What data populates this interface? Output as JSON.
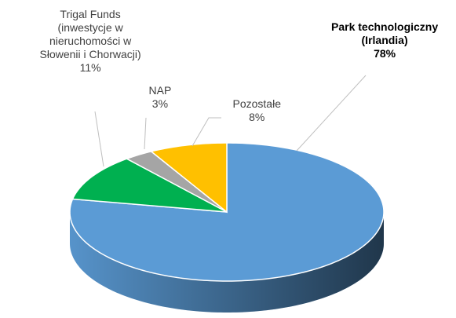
{
  "chart_data": {
    "type": "pie",
    "categories": [
      "Park technologiczny\n(Irlandia)",
      "Trigal Funds\n(inwestycje w\nnieruchomości w\nSłowenii i Chorwacji)",
      "NAP",
      "Pozostałe"
    ],
    "values": [
      78,
      11,
      3,
      8
    ],
    "value_labels": [
      "78%",
      "11%",
      "3%",
      "8%"
    ],
    "colors": [
      "#5b9bd5",
      "#00b050",
      "#a5a5a5",
      "#ffc000"
    ]
  }
}
